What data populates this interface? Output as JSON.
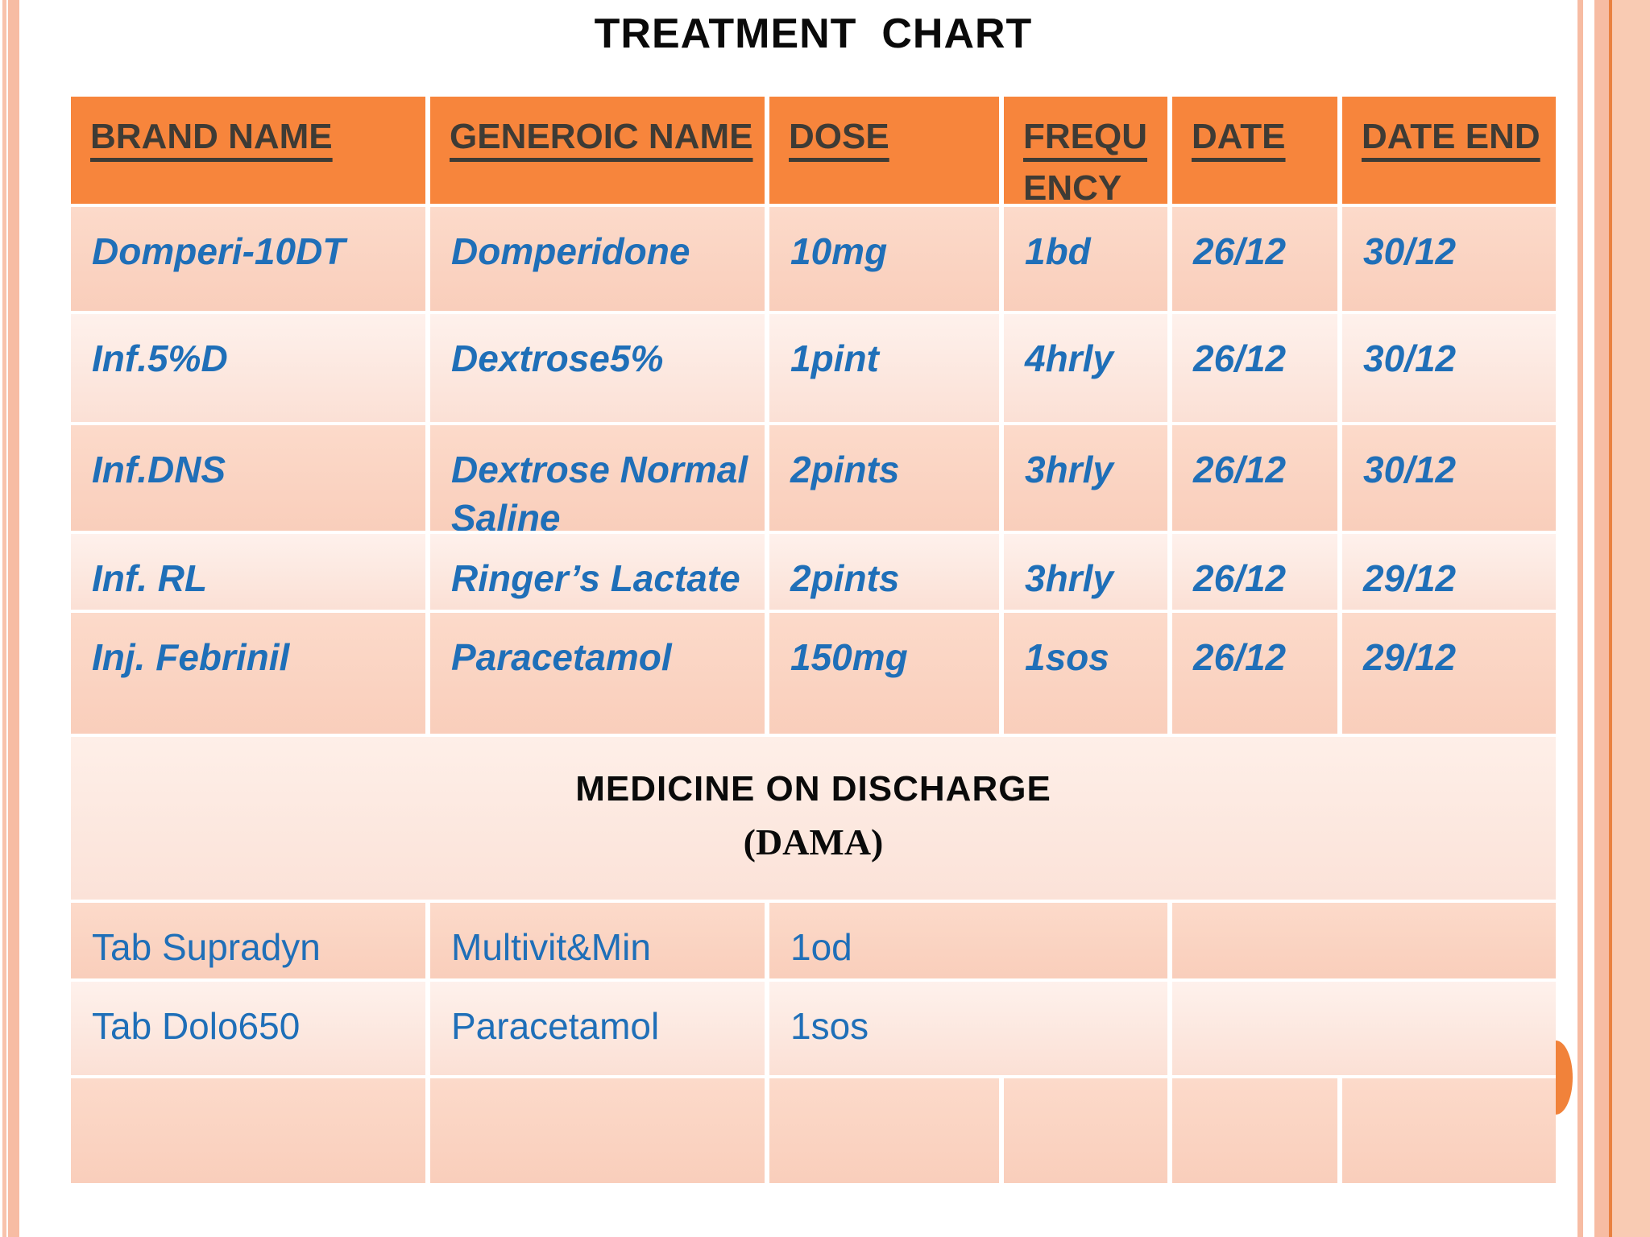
{
  "title": "TREATMENT  CHART",
  "table": {
    "headers": {
      "brand": "BRAND NAME",
      "generic": "GENEROIC NAME",
      "dose": "DOSE",
      "frequency": "FREQUENCY",
      "date": "DATE",
      "date_end": "DATE END"
    },
    "rows": [
      {
        "brand": "Domperi-10DT",
        "generic": "Domperidone",
        "dose": "10mg",
        "frequency": "1bd",
        "date": "26/12",
        "date_end": "30/12"
      },
      {
        "brand": "Inf.5%D",
        "generic": "Dextrose5%",
        "dose": "1pint",
        "frequency": "4hrly",
        "date": "26/12",
        "date_end": "30/12"
      },
      {
        "brand": "Inf.DNS",
        "generic": "Dextrose Normal Saline",
        "dose": "2pints",
        "frequency": "3hrly",
        "date": "26/12",
        "date_end": "30/12"
      },
      {
        "brand": "Inf. RL",
        "generic": "Ringer’s Lactate",
        "dose": "2pints",
        "frequency": "3hrly",
        "date": "26/12",
        "date_end": "29/12"
      },
      {
        "brand": "Inj. Febrinil",
        "generic": "Paracetamol",
        "dose": "150mg",
        "frequency": "1sos",
        "date": "26/12",
        "date_end": "29/12"
      }
    ],
    "discharge_section": {
      "heading": "MEDICINE ON DISCHARGE",
      "subheading": "(DAMA)"
    },
    "discharge_rows": [
      {
        "brand": "Tab Supradyn",
        "generic": "Multivit&Min",
        "dose": "1od",
        "dates": ""
      },
      {
        "brand": "Tab Dolo650",
        "generic": "Paracetamol",
        "dose": "1sos",
        "dates": ""
      }
    ]
  },
  "colors": {
    "header_bg": "#F7853C",
    "header_text": "#3E3B35",
    "row_dark_top": "#FCDACA",
    "row_dark_bottom": "#F9CEBB",
    "row_light_top": "#FEF1EC",
    "row_light_bottom": "#FBE0D5",
    "section_top": "#FEEFE8",
    "section_bottom": "#FBE2D8",
    "text_blue": "#1F6FB8",
    "stripe_narrow": "#F8C3AC",
    "stripe_wide": "#F7BCA3",
    "salmon_band": "#F9CBB3",
    "orange_line": "#E98140",
    "accent_circle": "#F1823A"
  }
}
